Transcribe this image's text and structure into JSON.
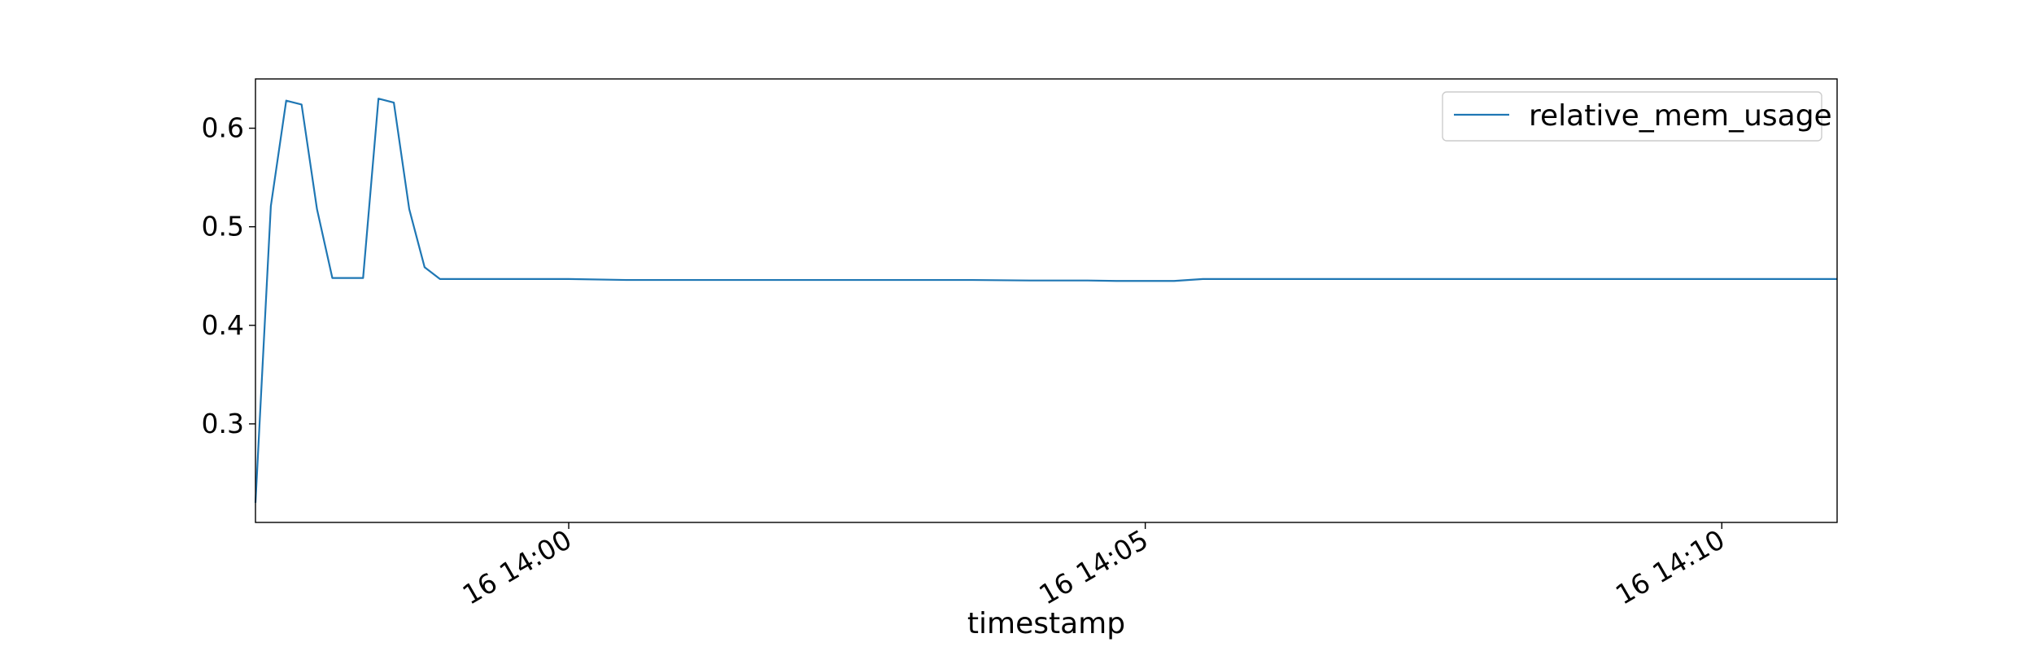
{
  "chart_data": {
    "type": "line",
    "title": "",
    "xlabel": "timestamp",
    "ylabel": "",
    "grid": false,
    "legend_position": "top-right",
    "x_range": [
      "13:57:17",
      "14:11:00"
    ],
    "ylim": [
      0.2,
      0.65
    ],
    "x_ticks": [
      {
        "time": "14:00:00",
        "label": "16 14:00"
      },
      {
        "time": "14:05:00",
        "label": "16 14:05"
      },
      {
        "time": "14:10:00",
        "label": "16 14:10"
      }
    ],
    "y_ticks": [
      {
        "value": 0.3,
        "label": "0.3"
      },
      {
        "value": 0.4,
        "label": "0.4"
      },
      {
        "value": 0.5,
        "label": "0.5"
      },
      {
        "value": 0.6,
        "label": "0.6"
      }
    ],
    "series": [
      {
        "name": "relative_mem_usage",
        "color": "#1f77b4",
        "points": [
          [
            "13:57:17",
            0.22
          ],
          [
            "13:57:25",
            0.521
          ],
          [
            "13:57:33",
            0.628
          ],
          [
            "13:57:41",
            0.624
          ],
          [
            "13:57:49",
            0.518
          ],
          [
            "13:57:57",
            0.448
          ],
          [
            "13:58:05",
            0.448
          ],
          [
            "13:58:13",
            0.448
          ],
          [
            "13:58:21",
            0.63
          ],
          [
            "13:58:29",
            0.626
          ],
          [
            "13:58:37",
            0.518
          ],
          [
            "13:58:45",
            0.459
          ],
          [
            "13:58:53",
            0.447
          ],
          [
            "13:59:01",
            0.447
          ],
          [
            "13:59:30",
            0.447
          ],
          [
            "14:00:00",
            0.447
          ],
          [
            "14:00:30",
            0.446
          ],
          [
            "14:01:30",
            0.446
          ],
          [
            "14:02:30",
            0.446
          ],
          [
            "14:03:30",
            0.446
          ],
          [
            "14:04:00",
            0.4455
          ],
          [
            "14:04:30",
            0.4455
          ],
          [
            "14:04:45",
            0.445
          ],
          [
            "14:05:15",
            0.445
          ],
          [
            "14:05:30",
            0.447
          ],
          [
            "14:06:30",
            0.447
          ],
          [
            "14:07:30",
            0.447
          ],
          [
            "14:08:30",
            0.447
          ],
          [
            "14:09:30",
            0.447
          ],
          [
            "14:10:30",
            0.447
          ],
          [
            "14:11:00",
            0.447
          ]
        ]
      }
    ]
  }
}
